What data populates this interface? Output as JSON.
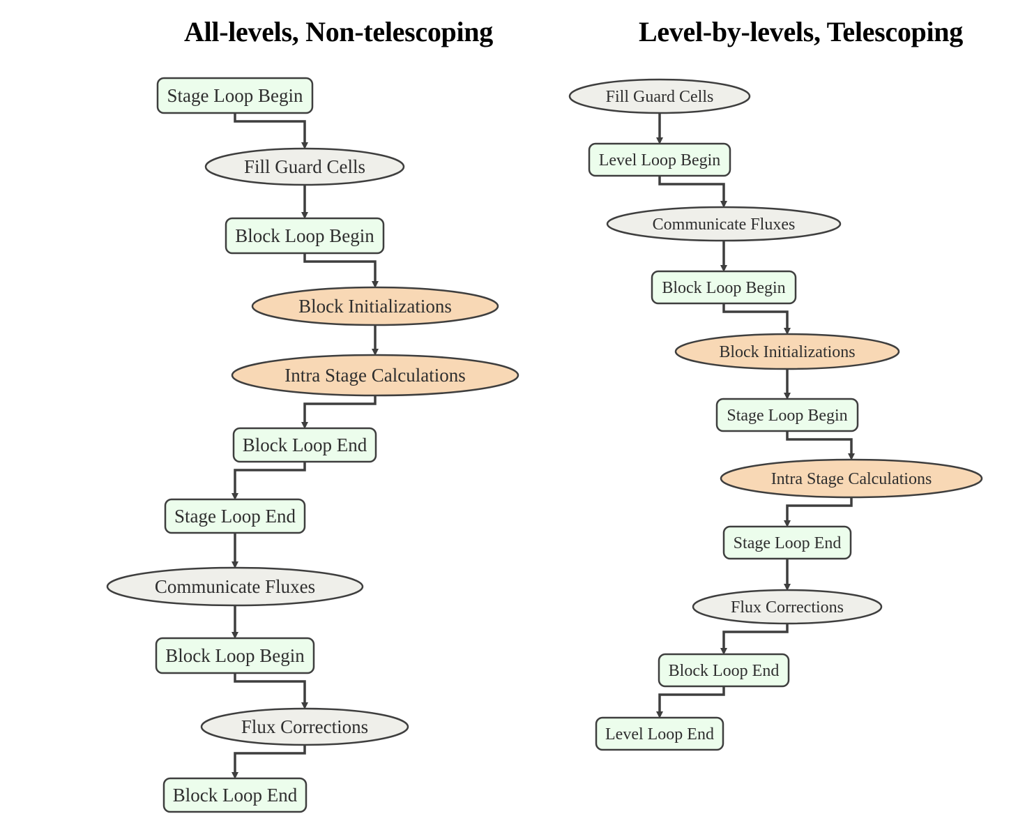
{
  "titles": {
    "left": "All-levels, Non-telescoping",
    "right": "Level-by-levels, Telescoping"
  },
  "colors": {
    "loop_fill": "#ecfdec",
    "comm_fill": "#efefea",
    "compute_fill": "#f8d8b5",
    "stroke": "#3e3e3e"
  },
  "left_flow": [
    {
      "label": "Stage Loop Begin",
      "kind": "loop"
    },
    {
      "label": "Fill Guard Cells",
      "kind": "comm"
    },
    {
      "label": "Block Loop Begin",
      "kind": "loop"
    },
    {
      "label": "Block Initializations",
      "kind": "compute"
    },
    {
      "label": "Intra Stage Calculations",
      "kind": "compute"
    },
    {
      "label": "Block Loop End",
      "kind": "loop"
    },
    {
      "label": "Stage Loop End",
      "kind": "loop"
    },
    {
      "label": "Communicate Fluxes",
      "kind": "comm"
    },
    {
      "label": "Block Loop Begin",
      "kind": "loop"
    },
    {
      "label": "Flux Corrections",
      "kind": "comm"
    },
    {
      "label": "Block Loop End",
      "kind": "loop"
    }
  ],
  "right_flow": [
    {
      "label": "Fill Guard Cells",
      "kind": "comm"
    },
    {
      "label": "Level Loop Begin",
      "kind": "loop"
    },
    {
      "label": "Communicate Fluxes",
      "kind": "comm"
    },
    {
      "label": "Block Loop Begin",
      "kind": "loop"
    },
    {
      "label": "Block Initializations",
      "kind": "compute"
    },
    {
      "label": "Stage Loop Begin",
      "kind": "loop"
    },
    {
      "label": "Intra Stage Calculations",
      "kind": "compute"
    },
    {
      "label": "Stage Loop End",
      "kind": "loop"
    },
    {
      "label": "Flux Corrections",
      "kind": "comm"
    },
    {
      "label": "Block Loop End",
      "kind": "loop"
    },
    {
      "label": "Level Loop End",
      "kind": "loop"
    }
  ]
}
